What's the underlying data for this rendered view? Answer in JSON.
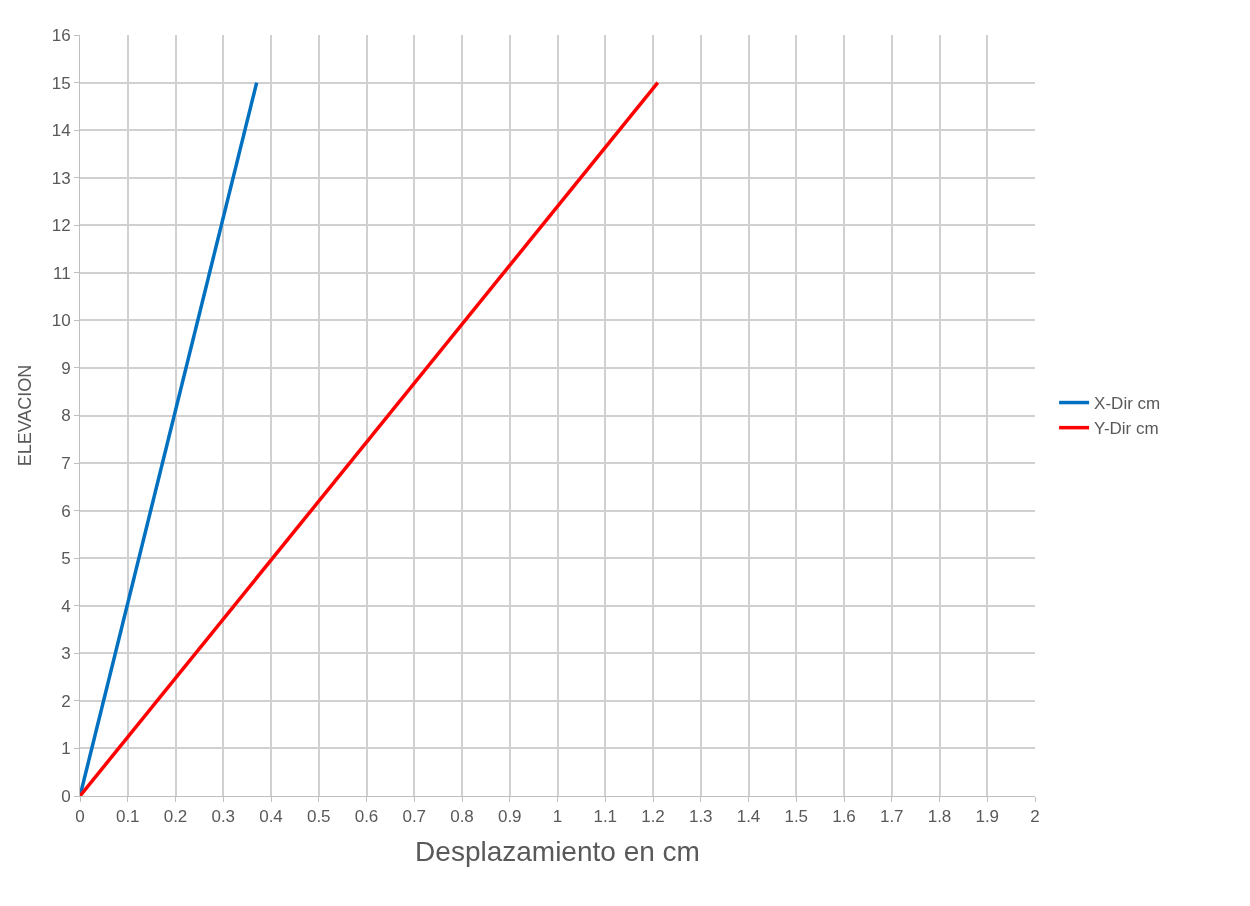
{
  "chart_data": {
    "type": "line",
    "xlabel": "Desplazamiento en cm",
    "ylabel": "ELEVACION",
    "series": [
      {
        "name": "X-Dir cm",
        "color": "#0070c0",
        "x": [
          0,
          0.37
        ],
        "values": [
          0,
          15
        ]
      },
      {
        "name": "Y-Dir cm",
        "color": "#ff0000",
        "x": [
          0,
          1.21
        ],
        "values": [
          0,
          15
        ]
      }
    ],
    "xlim": [
      0,
      2
    ],
    "xticks": [
      0,
      0.1,
      0.2,
      0.3,
      0.4,
      0.5,
      0.6,
      0.7,
      0.8,
      0.9,
      1,
      1.1,
      1.2,
      1.3,
      1.4,
      1.5,
      1.6,
      1.7,
      1.8,
      1.9,
      2
    ],
    "ylim": [
      0,
      16
    ],
    "yticks": [
      0,
      1,
      2,
      3,
      4,
      5,
      6,
      7,
      8,
      9,
      10,
      11,
      12,
      13,
      14,
      15,
      16
    ],
    "grid": true,
    "legend": "right",
    "marker": "none",
    "line_style": "solid"
  }
}
